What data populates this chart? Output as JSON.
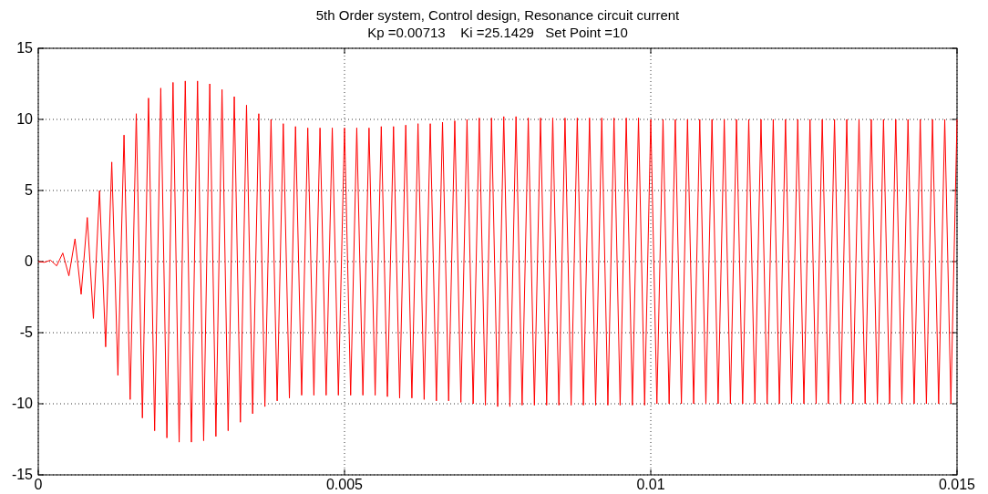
{
  "chart_data": {
    "type": "line",
    "title": "5th Order system, Control design, Resonance circuit current",
    "subtitle": "Kp =0.00713    Ki =25.1429   Set Point =10",
    "x": [
      0,
      0.0001,
      0.0002,
      0.0003,
      0.0004,
      0.0005,
      0.0006,
      0.0007,
      0.0008,
      0.0009,
      0.001,
      0.0011,
      0.0012,
      0.0013,
      0.0014,
      0.0015,
      0.0016,
      0.0017,
      0.0018,
      0.0019,
      0.002,
      0.0021,
      0.0022,
      0.0023,
      0.0024,
      0.0025,
      0.0026,
      0.0027,
      0.0028,
      0.0029,
      0.003,
      0.0031,
      0.0032,
      0.0033,
      0.0034,
      0.0035,
      0.0036,
      0.0037,
      0.0038,
      0.0039,
      0.004,
      0.0041,
      0.0042,
      0.0043,
      0.0044,
      0.0045,
      0.0046,
      0.0047,
      0.0048,
      0.0049,
      0.005,
      0.0051,
      0.0052,
      0.0053,
      0.0054,
      0.0055,
      0.0056,
      0.0057,
      0.0058,
      0.0059,
      0.006,
      0.0061,
      0.0062,
      0.0063,
      0.0064,
      0.0065,
      0.0066,
      0.0067,
      0.0068,
      0.0069,
      0.007,
      0.0071,
      0.0072,
      0.0073,
      0.0074,
      0.0075,
      0.0076,
      0.0077,
      0.0078,
      0.0079,
      0.008,
      0.0081,
      0.0082,
      0.0083,
      0.0084,
      0.0085,
      0.0086,
      0.0087,
      0.0088,
      0.0089,
      0.009,
      0.0091,
      0.0092,
      0.0093,
      0.0094,
      0.0095,
      0.0096,
      0.0097,
      0.0098,
      0.0099,
      0.01,
      0.0101,
      0.0102,
      0.0103,
      0.0104,
      0.0105,
      0.0106,
      0.0107,
      0.0108,
      0.0109,
      0.011,
      0.0111,
      0.0112,
      0.0113,
      0.0114,
      0.0115,
      0.0116,
      0.0117,
      0.0118,
      0.0119,
      0.012,
      0.0121,
      0.0122,
      0.0123,
      0.0124,
      0.0125,
      0.0126,
      0.0127,
      0.0128,
      0.0129,
      0.013,
      0.0131,
      0.0132,
      0.0133,
      0.0134,
      0.0135,
      0.0136,
      0.0137,
      0.0138,
      0.0139,
      0.014,
      0.0141,
      0.0142,
      0.0143,
      0.0144,
      0.0145,
      0.0146,
      0.0147,
      0.0148,
      0.0149,
      0.015
    ],
    "series": [
      {
        "color": "#ff0000",
        "values": [
          0,
          -0.05,
          0.1,
          -0.3,
          0.6,
          -1,
          1.6,
          -2.3,
          3.1,
          -4,
          5,
          -6,
          7,
          -8,
          8.9,
          -9.7,
          10.4,
          -11,
          11.5,
          -11.9,
          12.2,
          -12.4,
          12.6,
          -12.7,
          12.7,
          -12.7,
          12.7,
          -12.6,
          12.5,
          -12.3,
          12.1,
          -11.9,
          11.6,
          -11.3,
          11,
          -10.7,
          10.4,
          -10.2,
          10,
          -9.8,
          9.7,
          -9.6,
          9.5,
          -9.4,
          9.4,
          -9.4,
          9.4,
          -9.4,
          9.4,
          -9.4,
          9.4,
          -9.4,
          9.4,
          -9.4,
          9.4,
          -9.4,
          9.5,
          -9.5,
          9.5,
          -9.6,
          9.6,
          -9.6,
          9.7,
          -9.7,
          9.7,
          -9.8,
          9.8,
          -9.8,
          9.9,
          -9.9,
          10,
          -10,
          10.1,
          -10.1,
          10.1,
          -10.2,
          10.2,
          -10.2,
          10.2,
          -10.1,
          10.1,
          -10.1,
          10.1,
          -10.1,
          10.1,
          -10.1,
          10.1,
          -10.1,
          10.1,
          -10.1,
          10.1,
          -10.1,
          10.1,
          -10.1,
          10.1,
          -10.1,
          10.1,
          -10.1,
          10.1,
          -10.1,
          10,
          -10,
          10,
          -10,
          10,
          -10,
          10,
          -10,
          10,
          -10,
          10,
          -10,
          10,
          -10,
          10,
          -10,
          10,
          -10,
          10,
          -10,
          10,
          -10,
          10,
          -10,
          10,
          -10,
          10,
          -10,
          10,
          -10,
          10,
          -10,
          10,
          -10,
          10,
          -10,
          10,
          -10,
          10,
          -10,
          10,
          -10,
          10,
          -10,
          10,
          -10,
          10,
          -10,
          10,
          -10,
          10
        ]
      }
    ],
    "xlim": [
      0,
      0.015
    ],
    "xticks": [
      0,
      0.005,
      0.01,
      0.015
    ],
    "ylim": [
      -15,
      15
    ],
    "yticks": [
      -15,
      -10,
      -5,
      0,
      5,
      10,
      15
    ],
    "grid": true,
    "line_style": "solid"
  }
}
